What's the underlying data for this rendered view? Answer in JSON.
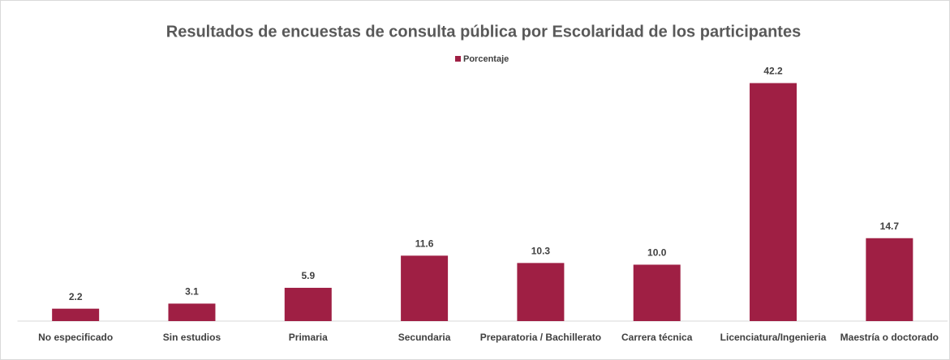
{
  "chart_data": {
    "type": "bar",
    "title": "Resultados de encuestas de consulta pública por Escolaridad de los participantes",
    "categories": [
      "No especificado",
      "Sin estudios",
      "Primaria",
      "Secundaria",
      "Preparatoria / Bachillerato",
      "Carrera técnica",
      "Licenciatura/Ingenieria",
      "Maestría o doctorado"
    ],
    "series": [
      {
        "name": "Porcentaje",
        "color": "#9f1f44",
        "values": [
          2.2,
          3.1,
          5.9,
          11.6,
          10.3,
          10.0,
          42.2,
          14.7
        ],
        "value_labels": [
          "2.2",
          "3.1",
          "5.9",
          "11.6",
          "10.3",
          "10.0",
          "42.2",
          "14.7"
        ]
      }
    ],
    "ylim": [
      0,
      45
    ],
    "legend": "top"
  }
}
